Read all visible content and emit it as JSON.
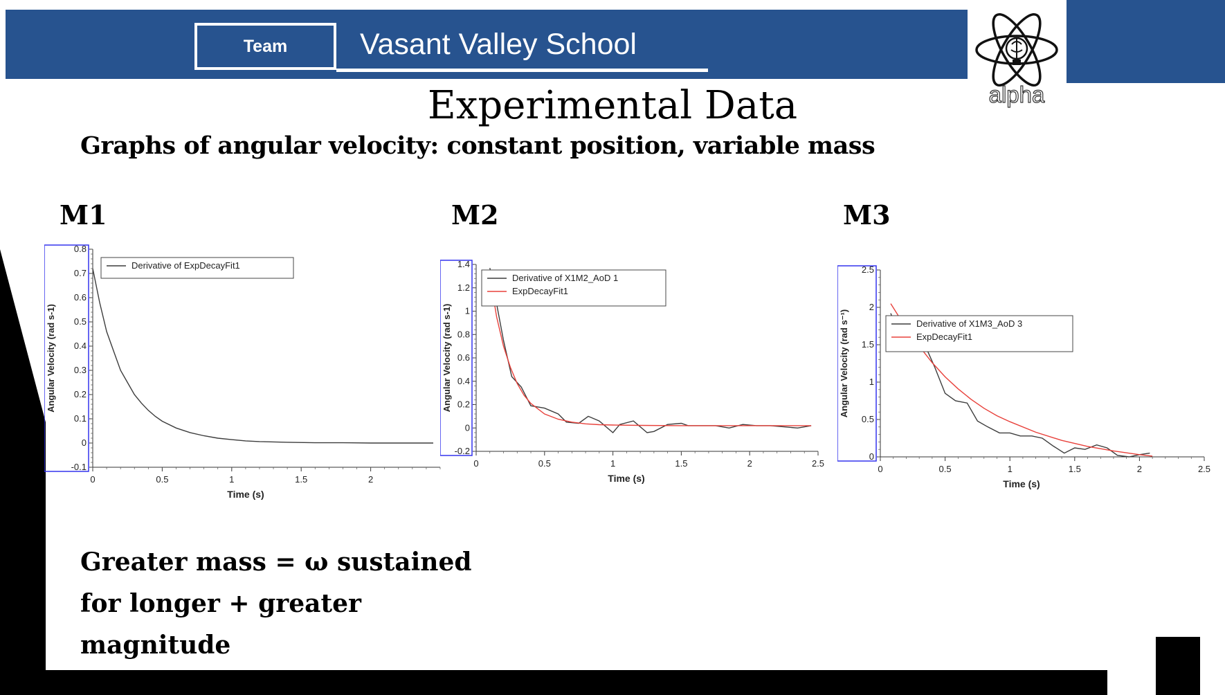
{
  "header": {
    "team_label": "Team",
    "school_name": "Vasant Valley School",
    "logo_text": "alpha",
    "brand_color": "#27538f"
  },
  "slide": {
    "title": "Experimental Data",
    "subtitle": "Graphs of angular velocity: constant position, variable mass",
    "panel_labels": [
      "M1",
      "M2",
      "M3"
    ],
    "conclusion_lines": [
      "Greater mass = ω sustained",
      "for longer + greater",
      "magnitude"
    ]
  },
  "chart_data": [
    {
      "type": "line",
      "panel": "M1",
      "xlabel": "Time (s)",
      "ylabel": "Angular Velocity (rad s-1)",
      "xlim": [
        0,
        2.5
      ],
      "ylim": [
        -0.1,
        0.8
      ],
      "xticks": [
        0,
        0.5,
        1,
        1.5,
        2
      ],
      "yticks": [
        -0.1,
        0,
        0.1,
        0.2,
        0.3,
        0.4,
        0.5,
        0.6,
        0.7,
        0.8
      ],
      "series": [
        {
          "name": "Derivative of ExpDecayFit1",
          "color": "#3c3c3c",
          "x": [
            0,
            0.05,
            0.1,
            0.15,
            0.2,
            0.25,
            0.3,
            0.35,
            0.4,
            0.45,
            0.5,
            0.6,
            0.7,
            0.8,
            0.9,
            1.0,
            1.1,
            1.2,
            1.4,
            1.6,
            1.8,
            2.0,
            2.2,
            2.45
          ],
          "y": [
            0.72,
            0.58,
            0.46,
            0.38,
            0.3,
            0.25,
            0.2,
            0.165,
            0.135,
            0.11,
            0.09,
            0.062,
            0.043,
            0.03,
            0.02,
            0.014,
            0.009,
            0.006,
            0.003,
            0.001,
            0.001,
            0.0,
            0.0,
            0.0
          ]
        }
      ]
    },
    {
      "type": "line",
      "panel": "M2",
      "xlabel": "Time (s)",
      "ylabel": "Angular Velocity (rad s-1)",
      "xlim": [
        0,
        2.5
      ],
      "ylim": [
        -0.2,
        1.4
      ],
      "xticks": [
        0,
        0.5,
        1,
        1.5,
        2,
        2.5
      ],
      "yticks": [
        -0.2,
        0,
        0.2,
        0.4,
        0.6,
        0.8,
        1,
        1.2,
        1.4
      ],
      "series": [
        {
          "name": "Derivative of X1M2_AoD 1",
          "color": "#3c3c3c",
          "x": [
            0.1,
            0.2,
            0.26,
            0.33,
            0.4,
            0.5,
            0.6,
            0.66,
            0.75,
            0.82,
            0.9,
            1.0,
            1.05,
            1.15,
            1.25,
            1.3,
            1.4,
            1.5,
            1.55,
            1.65,
            1.75,
            1.85,
            1.95,
            2.05,
            2.15,
            2.25,
            2.35,
            2.45
          ],
          "y": [
            1.37,
            0.75,
            0.44,
            0.35,
            0.19,
            0.17,
            0.12,
            0.05,
            0.04,
            0.1,
            0.06,
            -0.04,
            0.03,
            0.06,
            -0.04,
            -0.03,
            0.03,
            0.04,
            0.02,
            0.02,
            0.02,
            0.0,
            0.03,
            0.02,
            0.02,
            0.01,
            0.0,
            0.02
          ]
        },
        {
          "name": "ExpDecayFit1",
          "color": "#e8403a",
          "x": [
            0.1,
            0.15,
            0.2,
            0.25,
            0.3,
            0.35,
            0.4,
            0.5,
            0.6,
            0.7,
            0.8,
            0.9,
            1.0,
            1.2,
            1.5,
            1.8,
            2.1,
            2.45
          ],
          "y": [
            1.3,
            0.95,
            0.7,
            0.52,
            0.38,
            0.28,
            0.21,
            0.12,
            0.075,
            0.05,
            0.035,
            0.028,
            0.025,
            0.022,
            0.02,
            0.02,
            0.02,
            0.02
          ]
        }
      ]
    },
    {
      "type": "line",
      "panel": "M3",
      "xlabel": "Time (s)",
      "ylabel": "Angular Velocity (rad s⁻¹)",
      "xlim": [
        0,
        2.5
      ],
      "ylim": [
        0,
        2.5
      ],
      "xticks": [
        0,
        0.5,
        1,
        1.5,
        2,
        2.5
      ],
      "yticks": [
        0,
        0.5,
        1,
        1.5,
        2,
        2.5
      ],
      "series": [
        {
          "name": "Derivative of X1M3_AoD 3",
          "color": "#3c3c3c",
          "x": [
            0.08,
            0.17,
            0.25,
            0.33,
            0.42,
            0.5,
            0.58,
            0.67,
            0.75,
            0.83,
            0.92,
            1.0,
            1.08,
            1.17,
            1.25,
            1.33,
            1.42,
            1.5,
            1.58,
            1.67,
            1.75,
            1.83,
            1.92,
            2.0,
            2.08
          ],
          "y": [
            1.92,
            1.5,
            1.85,
            1.55,
            1.2,
            0.85,
            0.75,
            0.72,
            0.48,
            0.4,
            0.32,
            0.32,
            0.28,
            0.28,
            0.25,
            0.15,
            0.05,
            0.12,
            0.1,
            0.16,
            0.12,
            0.02,
            0.0,
            0.03,
            0.05
          ]
        },
        {
          "name": "ExpDecayFit1",
          "color": "#e8403a",
          "x": [
            0.08,
            0.2,
            0.3,
            0.4,
            0.5,
            0.6,
            0.7,
            0.8,
            0.9,
            1.0,
            1.2,
            1.4,
            1.6,
            1.8,
            2.0,
            2.1
          ],
          "y": [
            2.05,
            1.72,
            1.48,
            1.26,
            1.07,
            0.91,
            0.77,
            0.65,
            0.55,
            0.47,
            0.33,
            0.22,
            0.14,
            0.08,
            0.03,
            0.01
          ]
        }
      ]
    }
  ]
}
